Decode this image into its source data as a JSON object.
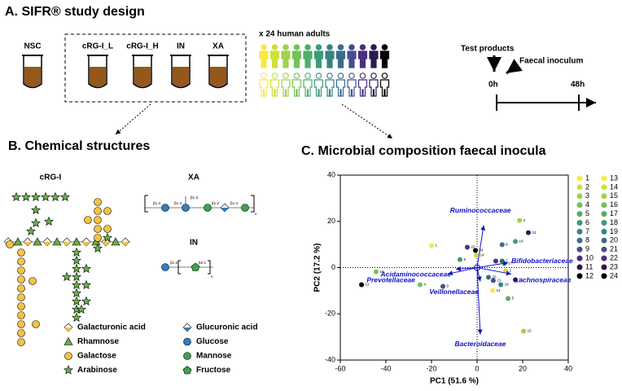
{
  "panel_a": {
    "title": "A. SIFR® study design",
    "tubes": [
      "NSC",
      "cRG-I_L",
      "cRG-I_H",
      "IN",
      "XA"
    ],
    "people_label": "x 24 human adults",
    "timeline": {
      "test_products": "Test products",
      "inoculum": "Faecal inoculum",
      "start": "0h",
      "end": "48h"
    }
  },
  "panel_b": {
    "title": "B. Chemical structures",
    "structures": [
      "cRG-I",
      "XA",
      "IN"
    ],
    "xa_bonds": [
      "β1-4",
      "β1-4",
      "β1-3",
      "β1-2",
      "β1-4"
    ],
    "xa_repeat": "n",
    "in_bonds": [
      "β1-2",
      "β2-1"
    ],
    "in_repeat": "n",
    "legend": [
      "Galacturonic acid",
      "Glucuronic acid",
      "Rhamnose",
      "Glucose",
      "Galactose",
      "Mannose",
      "Arabinose",
      "Fructose"
    ]
  },
  "chart_data": {
    "type": "scatter",
    "title": "C. Microbial composition faecal inocula",
    "x_label": "PC1 (51.6 %)",
    "y_label": "PC2 (17.2 %)",
    "xlim": [
      -60,
      40
    ],
    "ylim": [
      -40,
      40
    ],
    "xticks": [
      -60,
      -40,
      -20,
      0,
      20,
      40
    ],
    "yticks": [
      -40,
      -20,
      0,
      20,
      40
    ],
    "series": [
      {
        "name": "1",
        "color": "#f7e84a",
        "x": [
          -20
        ],
        "values": [
          9.5
        ]
      },
      {
        "name": "2",
        "color": "#cde03e",
        "x": [
          12.5
        ],
        "values": [
          -1.4
        ]
      },
      {
        "name": "3",
        "color": "#9fd24a",
        "x": [
          18.6
        ],
        "values": [
          20.4
        ]
      },
      {
        "name": "4",
        "color": "#72c257",
        "x": [
          -25
        ],
        "values": [
          -7.4
        ]
      },
      {
        "name": "5",
        "color": "#4fae6b",
        "x": [
          13.6
        ],
        "values": [
          -13.4
        ]
      },
      {
        "name": "6",
        "color": "#3c9a7a",
        "x": [
          -7.5
        ],
        "values": [
          3.5
        ]
      },
      {
        "name": "7",
        "color": "#348484",
        "x": [
          11
        ],
        "values": [
          2.8
        ]
      },
      {
        "name": "8",
        "color": "#3a6c8c",
        "x": [
          11
        ],
        "values": [
          9.9
        ]
      },
      {
        "name": "9",
        "color": "#454f8f",
        "x": [
          -15
        ],
        "values": [
          -8.1
        ]
      },
      {
        "name": "10",
        "color": "#4b2f7f",
        "x": [
          8.2
        ],
        "values": [
          2.8
        ]
      },
      {
        "name": "11",
        "color": "#2a1a4f",
        "x": [
          16.8
        ],
        "values": [
          -5.3
        ]
      },
      {
        "name": "12",
        "color": "#000000",
        "x": [
          -50.7
        ],
        "values": [
          -7.4
        ]
      },
      {
        "name": "13",
        "color": "#f7e84a",
        "x": [
          6.8
        ],
        "values": [
          -9.9
        ]
      },
      {
        "name": "14",
        "color": "#cde03e",
        "x": [
          -0.4
        ],
        "values": [
          5.3
        ]
      },
      {
        "name": "15",
        "color": "#9fd24a",
        "x": [
          20.4
        ],
        "values": [
          -27.5
        ]
      },
      {
        "name": "16",
        "color": "#72c257",
        "x": [
          -44.3
        ],
        "values": [
          -1.8
        ]
      },
      {
        "name": "17",
        "color": "#4fae6b",
        "x": [
          12
        ],
        "values": [
          1.8
        ]
      },
      {
        "name": "18",
        "color": "#3c9a7a",
        "x": [
          16.8
        ],
        "values": [
          11.3
        ]
      },
      {
        "name": "19",
        "color": "#348484",
        "x": [
          10.4
        ],
        "values": [
          -7.4
        ]
      },
      {
        "name": "20",
        "color": "#3a6c8c",
        "x": [
          5
        ],
        "values": [
          -4.2
        ]
      },
      {
        "name": "21",
        "color": "#454f8f",
        "x": [
          7.1
        ],
        "values": [
          -5.6
        ]
      },
      {
        "name": "22",
        "color": "#4b2f7f",
        "x": [
          -4.3
        ],
        "values": [
          8.8
        ]
      },
      {
        "name": "23",
        "color": "#2a1a4f",
        "x": [
          22.5
        ],
        "values": [
          15.1
        ]
      },
      {
        "name": "24",
        "color": "#000000",
        "x": [
          -0.7
        ],
        "values": [
          7.4
        ]
      }
    ],
    "loadings": [
      {
        "name": "Ruminococcaceae",
        "x": 2.9,
        "y": 18.3
      },
      {
        "name": "Bifidobacteriaceae",
        "x": 13.6,
        "y": 2.1
      },
      {
        "name": "Acidaminococcaceae",
        "x": -9.3,
        "y": -0.7
      },
      {
        "name": "Lachnospiraceae",
        "x": 15,
        "y": -2.8
      },
      {
        "name": "Prevotellaceae",
        "x": -12.9,
        "y": -2.8
      },
      {
        "name": "Veillonellaceae",
        "x": 1.4,
        "y": -6
      },
      {
        "name": "Bacteroidaceae",
        "x": 1.4,
        "y": -28.9
      }
    ]
  }
}
